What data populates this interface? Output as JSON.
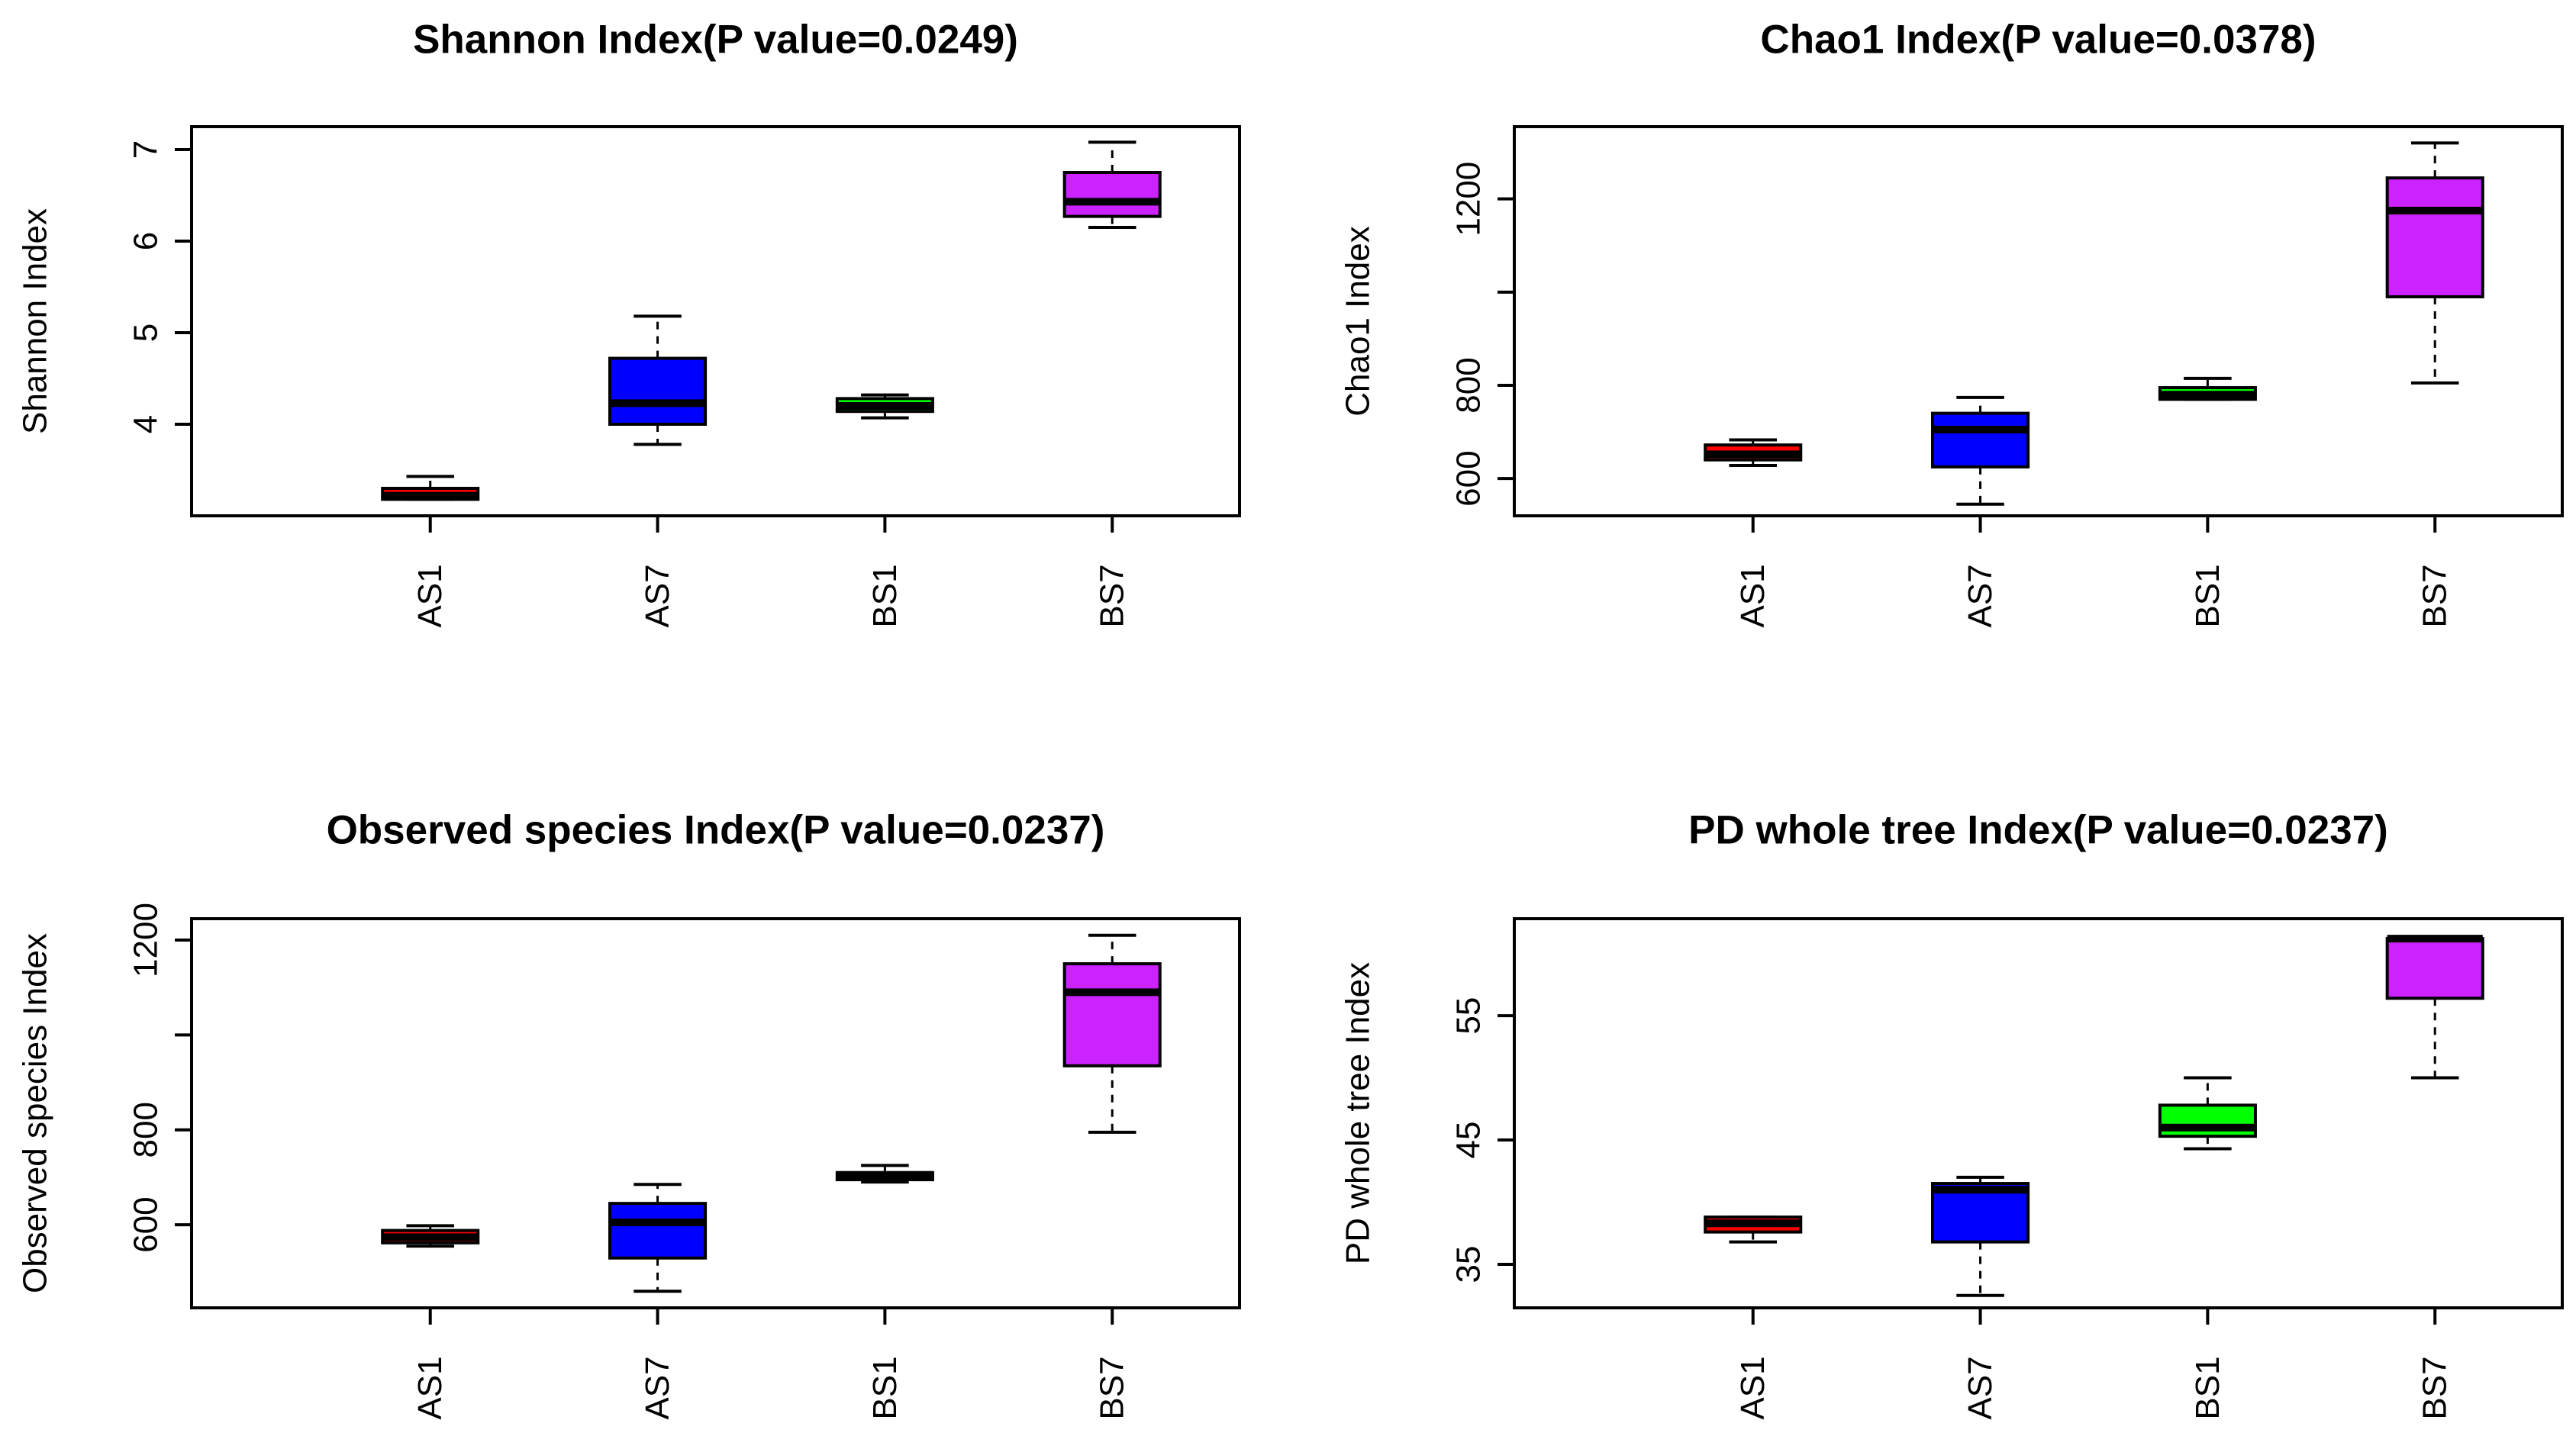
{
  "chart_data": [
    {
      "type": "boxplot",
      "title": "Shannon Index(P value=0.0249)",
      "ylabel": "Shannon Index",
      "ylim": [
        3.0,
        7.25
      ],
      "yticks": [
        4,
        5,
        6,
        7
      ],
      "categories": [
        "AS1",
        "AS7",
        "BS1",
        "BS7"
      ],
      "colors": [
        "#ff0000",
        "#0000ff",
        "#00ff00",
        "#cc22ff"
      ],
      "boxes": [
        {
          "min": 3.18,
          "q1": 3.18,
          "median": 3.22,
          "q3": 3.3,
          "max": 3.43
        },
        {
          "min": 3.78,
          "q1": 4.0,
          "median": 4.23,
          "q3": 4.72,
          "max": 5.18
        },
        {
          "min": 4.07,
          "q1": 4.14,
          "median": 4.2,
          "q3": 4.28,
          "max": 4.32
        },
        {
          "min": 6.15,
          "q1": 6.27,
          "median": 6.43,
          "q3": 6.75,
          "max": 7.08
        }
      ]
    },
    {
      "type": "boxplot",
      "title": "Chao1 Index(P value=0.0378)",
      "ylabel": "Chao1 Index",
      "ylim": [
        520,
        1355
      ],
      "yticks": [
        600,
        800,
        1000,
        1200
      ],
      "ytick_labels": [
        "600",
        "800",
        "",
        "1200"
      ],
      "categories": [
        "AS1",
        "AS7",
        "BS1",
        "BS7"
      ],
      "colors": [
        "#ff0000",
        "#0000ff",
        "#00ff00",
        "#cc22ff"
      ],
      "boxes": [
        {
          "min": 628,
          "q1": 640,
          "median": 652,
          "q3": 672,
          "max": 683
        },
        {
          "min": 545,
          "q1": 625,
          "median": 705,
          "q3": 740,
          "max": 774
        },
        {
          "min": 770,
          "q1": 770,
          "median": 780,
          "q3": 795,
          "max": 815
        },
        {
          "min": 805,
          "q1": 990,
          "median": 1175,
          "q3": 1245,
          "max": 1320
        }
      ]
    },
    {
      "type": "boxplot",
      "title": "Observed species Index(P value=0.0237)",
      "ylabel": "Observed species Index",
      "ylim": [
        425,
        1245
      ],
      "yticks": [
        600,
        800,
        1000,
        1200
      ],
      "ytick_labels": [
        "600",
        "800",
        "",
        "1200"
      ],
      "categories": [
        "AS1",
        "AS7",
        "BS1",
        "BS7"
      ],
      "colors": [
        "#ff0000",
        "#0000ff",
        "#00ff00",
        "#cc22ff"
      ],
      "boxes": [
        {
          "min": 555,
          "q1": 562,
          "median": 574,
          "q3": 588,
          "max": 598
        },
        {
          "min": 460,
          "q1": 530,
          "median": 605,
          "q3": 645,
          "max": 685
        },
        {
          "min": 690,
          "q1": 695,
          "median": 705,
          "q3": 710,
          "max": 725
        },
        {
          "min": 795,
          "q1": 935,
          "median": 1090,
          "q3": 1150,
          "max": 1210
        }
      ]
    },
    {
      "type": "boxplot",
      "title": "PD whole tree Index(P value=0.0237)",
      "ylabel": "PD whole tree Index",
      "ylim": [
        31.5,
        62.8
      ],
      "yticks": [
        35,
        45,
        55
      ],
      "categories": [
        "AS1",
        "AS7",
        "BS1",
        "BS7"
      ],
      "colors": [
        "#ff0000",
        "#0000ff",
        "#00ff00",
        "#cc22ff"
      ],
      "boxes": [
        {
          "min": 36.8,
          "q1": 37.6,
          "median": 38.3,
          "q3": 38.8,
          "max": 38.8
        },
        {
          "min": 32.5,
          "q1": 36.8,
          "median": 41.0,
          "q3": 41.5,
          "max": 42.0
        },
        {
          "min": 44.3,
          "q1": 45.3,
          "median": 46.0,
          "q3": 47.8,
          "max": 50.0
        },
        {
          "min": 50.0,
          "q1": 56.4,
          "median": 61.2,
          "q3": 61.2,
          "max": 61.3
        }
      ]
    }
  ]
}
